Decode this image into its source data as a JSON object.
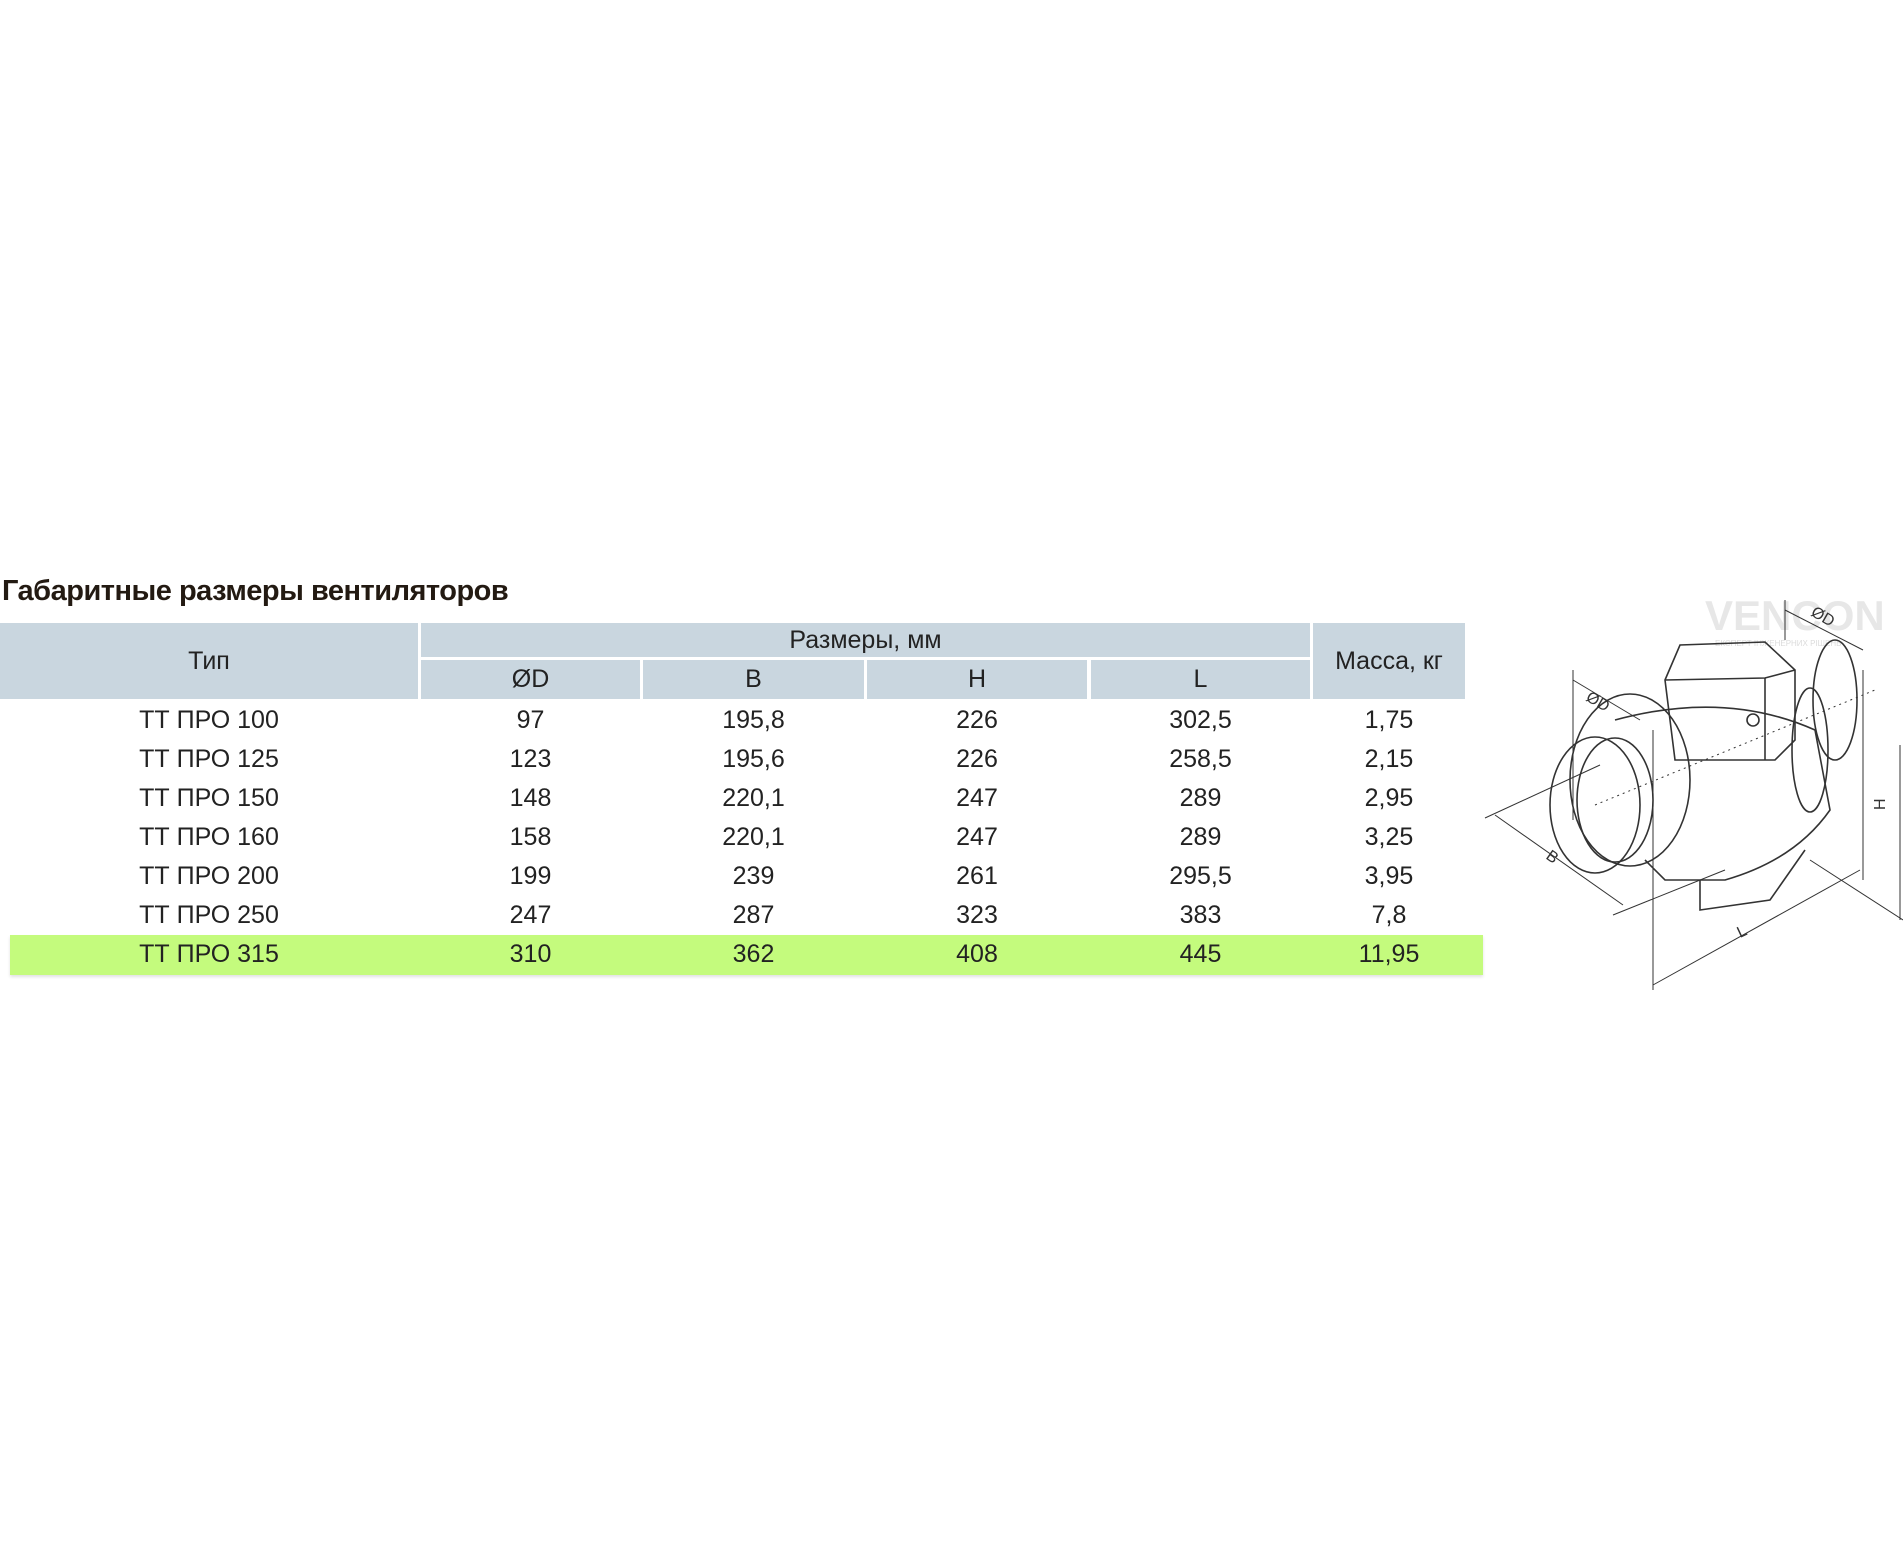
{
  "title": "Габаритные размеры вентиляторов",
  "table": {
    "headers": {
      "type": "Тип",
      "dimensions": "Размеры, мм",
      "mass": "Масса, кг",
      "sub": [
        "ØD",
        "B",
        "H",
        "L"
      ]
    },
    "rows": [
      [
        "ТТ ПРО 100",
        "97",
        "195,8",
        "226",
        "302,5",
        "1,75"
      ],
      [
        "ТТ ПРО 125",
        "123",
        "195,6",
        "226",
        "258,5",
        "2,15"
      ],
      [
        "ТТ ПРО 150",
        "148",
        "220,1",
        "247",
        "289",
        "2,95"
      ],
      [
        "ТТ ПРО 160",
        "158",
        "220,1",
        "247",
        "289",
        "3,25"
      ],
      [
        "ТТ ПРО 200",
        "199",
        "239",
        "261",
        "295,5",
        "3,95"
      ],
      [
        "ТТ ПРО 250",
        "247",
        "287",
        "323",
        "383",
        "7,8"
      ],
      [
        "ТТ ПРО 315",
        "310",
        "362",
        "408",
        "445",
        "11,95"
      ]
    ],
    "highlighted_row": 6,
    "colors": {
      "header": "#c9d6df",
      "highlight": "#c4fb7d"
    }
  },
  "drawing": {
    "labels": {
      "d_front": "ØD",
      "d_back": "ØD",
      "b": "B",
      "h": "H",
      "l": "L"
    },
    "watermark": "VENCON",
    "watermark_sub": "ЕКСПЕРТ ІНЖЕНЕРНИХ РІШЕНЬ"
  }
}
